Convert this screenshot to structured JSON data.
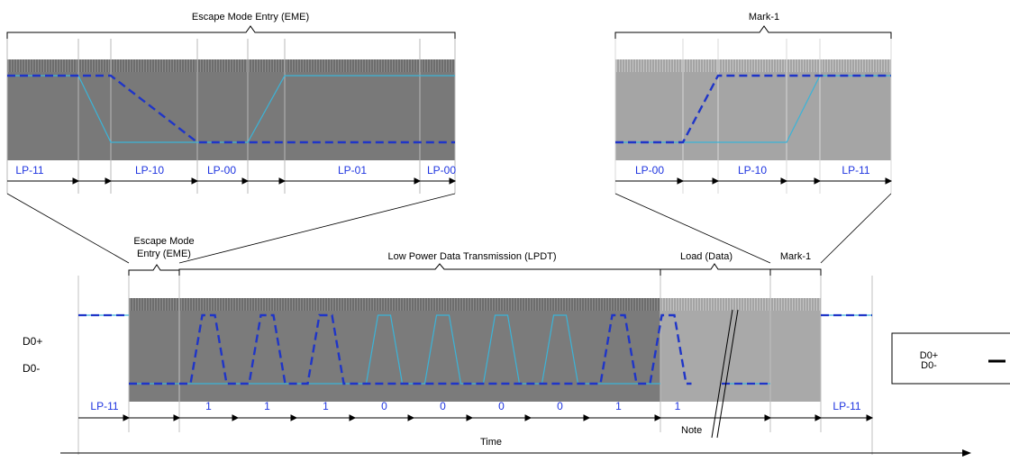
{
  "colors": {
    "data_pos": "#1f35c8",
    "data_neg": "#3bb4d8",
    "dark_fill": "#7a7a7a",
    "light_fill": "#a9a9a9",
    "bit_text": "#1f35e0"
  },
  "zoom_left": {
    "title": "Escape Mode Entry (EME)",
    "states": [
      "LP-11",
      "LP-10",
      "LP-00",
      "LP-01",
      "LP-00"
    ]
  },
  "zoom_right": {
    "title": "Mark-1",
    "states": [
      "LP-00",
      "LP-10",
      "LP-11"
    ]
  },
  "main": {
    "eme_label_line1": "Escape Mode",
    "eme_label_line2": "Entry (EME)",
    "lpdt_label": "Low Power Data Transmission (LPDT)",
    "load_label": "Load (Data)",
    "mark_label": "Mark-1",
    "signal_pos": "D0+",
    "signal_neg": "D0-",
    "start_state": "LP-11",
    "end_state": "LP-11",
    "bits": [
      "1",
      "1",
      "1",
      "0",
      "0",
      "0",
      "0",
      "1",
      "1"
    ],
    "note": "Note",
    "time_label": "Time"
  },
  "legend": {
    "pos": "D0+",
    "neg": "D0-"
  }
}
